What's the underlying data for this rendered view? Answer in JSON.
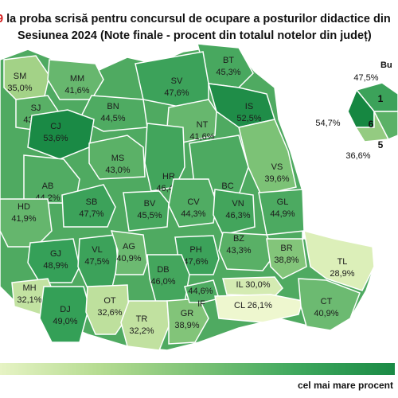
{
  "title": {
    "highlight": "9",
    "line1": " la proba scrisă pentru concursul de ocupare a posturilor didactice din",
    "line2": "Sesiunea 2024 (Note finale - procent din totalul notelor din județ)"
  },
  "legend": {
    "high_label": "cel mai mare procent"
  },
  "bucharest_label": "Bu",
  "counties": [
    {
      "code": "SM",
      "value": "35,0%",
      "color": "#a3d287"
    },
    {
      "code": "MM",
      "value": "41,6%",
      "color": "#67b76e"
    },
    {
      "code": "BT",
      "value": "45,3%",
      "color": "#48a85f"
    },
    {
      "code": "SV",
      "value": "47,6%",
      "color": "#3ca25a"
    },
    {
      "code": "SJ",
      "value": "43,3%",
      "color": "#59b066"
    },
    {
      "code": "BN",
      "value": "44,5%",
      "color": "#4fab62"
    },
    {
      "code": "IS",
      "value": "52,5%",
      "color": "#1f8d48"
    },
    {
      "code": "CJ",
      "value": "53,6%",
      "color": "#1a8a45"
    },
    {
      "code": "NT",
      "value": "41,6%",
      "color": "#67b76e"
    },
    {
      "code": "MS",
      "value": "43,0%",
      "color": "#5bb167"
    },
    {
      "code": "HR",
      "value": "46,4%",
      "color": "#42a55c"
    },
    {
      "code": "BC",
      "value": "44,7%",
      "color": "#4daa61"
    },
    {
      "code": "VS",
      "value": "39,6%",
      "color": "#7cc276"
    },
    {
      "code": "AB",
      "value": "44,2%",
      "color": "#51ac63"
    },
    {
      "code": "HD",
      "value": "41,9%",
      "color": "#65b66d"
    },
    {
      "code": "SB",
      "value": "47,7%",
      "color": "#3ca25a"
    },
    {
      "code": "BV",
      "value": "45,5%",
      "color": "#47a85f"
    },
    {
      "code": "CV",
      "value": "44,3%",
      "color": "#50ac63"
    },
    {
      "code": "VN",
      "value": "46,3%",
      "color": "#43a55c"
    },
    {
      "code": "GL",
      "value": "44,9%",
      "color": "#4caa61"
    },
    {
      "code": "GJ",
      "value": "48,9%",
      "color": "#35a058"
    },
    {
      "code": "VL",
      "value": "47,5%",
      "color": "#3ca25a"
    },
    {
      "code": "AG",
      "value": "40,9%",
      "color": "#6cba71"
    },
    {
      "code": "PH",
      "value": "47,6%",
      "color": "#3ca25a"
    },
    {
      "code": "BZ",
      "value": "43,3%",
      "color": "#59b066"
    },
    {
      "code": "BR",
      "value": "38,8%",
      "color": "#83c57a"
    },
    {
      "code": "TL",
      "value": "28,9%",
      "color": "#dcefb9"
    },
    {
      "code": "DB",
      "value": "46,0%",
      "color": "#44a65d"
    },
    {
      "code": "MH",
      "value": "32,1%",
      "color": "#c2e2a1"
    },
    {
      "code": "DJ",
      "value": "49,0%",
      "color": "#34a057"
    },
    {
      "code": "OT",
      "value": "32,6%",
      "color": "#bee09d"
    },
    {
      "code": "TR",
      "value": "32,2%",
      "color": "#c1e1a0"
    },
    {
      "code": "GR",
      "value": "38,9%",
      "color": "#82c479"
    },
    {
      "code": "IF",
      "value": "44,6%",
      "color": "#4eab62"
    },
    {
      "code": "IL",
      "value": "30,0%",
      "color": "#d4ebb2"
    },
    {
      "code": "CL",
      "value": "26,1%",
      "color": "#eef7cf"
    },
    {
      "code": "CT",
      "value": "40,9%",
      "color": "#6cba71"
    }
  ],
  "bucharest_sectors": [
    {
      "number": "1",
      "value": "47,5%",
      "color": "#3ca25a"
    },
    {
      "number": "6",
      "value": "54,7%",
      "color": "#168741"
    },
    {
      "number": "5",
      "value": "36,6%",
      "color": "#94cb81"
    }
  ]
}
